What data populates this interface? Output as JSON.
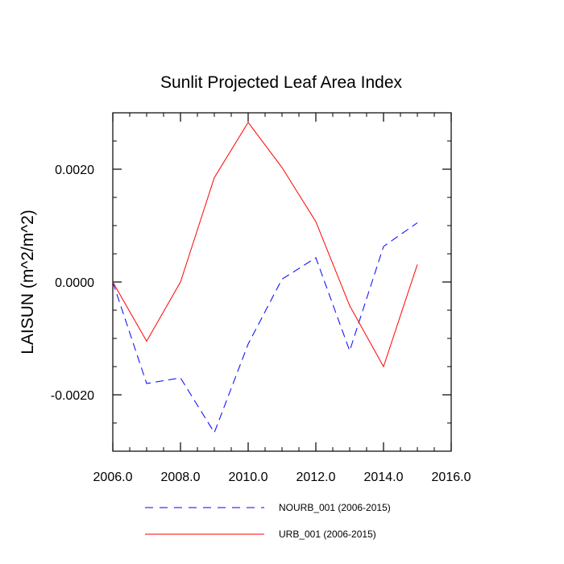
{
  "chart_data": {
    "type": "line",
    "title": "Sunlit Projected Leaf Area Index",
    "ylabel": "LAISUN  (m^2/m^2)",
    "xlabel": "",
    "xlim": [
      2006.0,
      2016.0
    ],
    "ylim": [
      -0.003,
      0.003
    ],
    "grid": false,
    "legend_position": "bottom",
    "x": [
      2006,
      2007,
      2008,
      2009,
      2010,
      2011,
      2012,
      2013,
      2014,
      2015
    ],
    "series": [
      {
        "name": "NOURB_001 (2006-2015)",
        "style": "dashed",
        "color": "#0000ff",
        "values": [
          0.0,
          -0.0018,
          -0.0017,
          -0.00267,
          -0.0011,
          5e-05,
          0.00043,
          -0.00122,
          0.00063,
          0.00105
        ]
      },
      {
        "name": "URB_001 (2006-2015)",
        "style": "solid",
        "color": "#ff0000",
        "values": [
          0.0,
          -0.00105,
          0.0,
          0.00185,
          0.00283,
          0.00203,
          0.00107,
          -0.00042,
          -0.0015,
          0.00031
        ]
      }
    ],
    "xticks": [
      {
        "value": 2006,
        "label": "2006.0"
      },
      {
        "value": 2008,
        "label": "2008.0"
      },
      {
        "value": 2010,
        "label": "2010.0"
      },
      {
        "value": 2012,
        "label": "2012.0"
      },
      {
        "value": 2014,
        "label": "2014.0"
      },
      {
        "value": 2016,
        "label": "2016.0"
      }
    ],
    "yticks": [
      {
        "value": 0.002,
        "label": "0.0020"
      },
      {
        "value": 0.0,
        "label": "0.0000"
      },
      {
        "value": -0.002,
        "label": "-0.0020"
      }
    ]
  }
}
